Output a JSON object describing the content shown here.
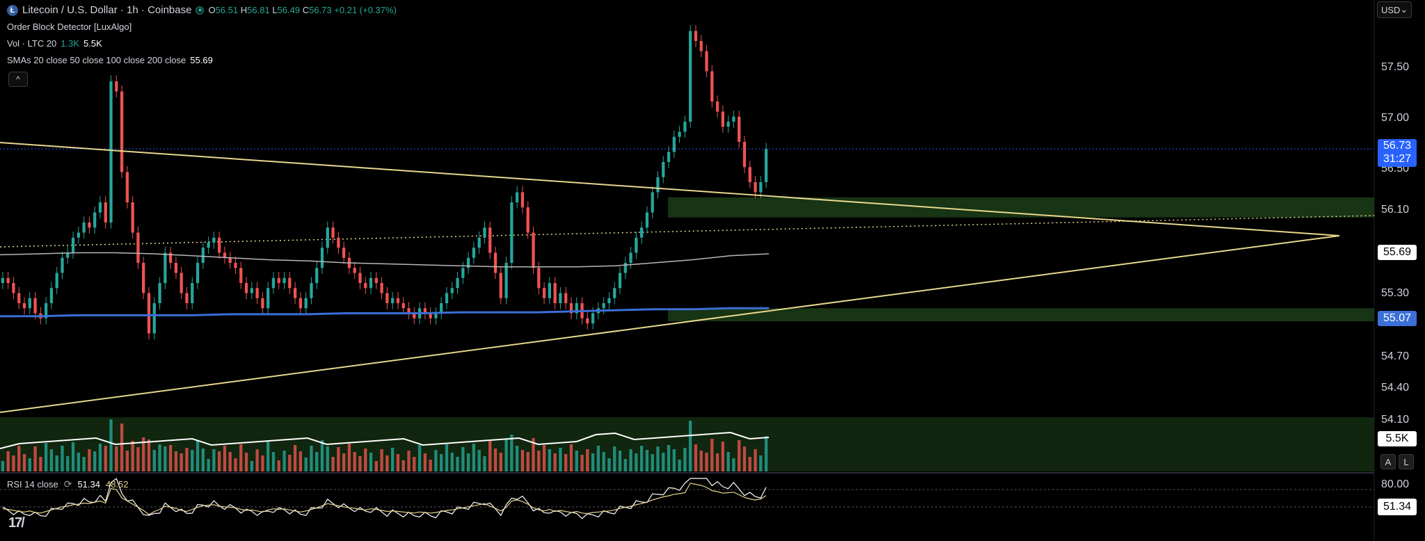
{
  "header": {
    "symbol_icon": "Ł",
    "symbol": "Litecoin / U.S. Dollar · 1h · Coinbase",
    "open_label": "O",
    "open": "56.51",
    "high_label": "H",
    "high": "56.81",
    "low_label": "L",
    "low": "56.49",
    "close_label": "C",
    "close": "56.73",
    "change": "+0.21 (+0.37%)"
  },
  "indicators": {
    "order_block": "Order Block Detector [LuxAlgo]",
    "vol_label": "Vol · LTC 20",
    "vol_value1": "1.3K",
    "vol_value2": "5.5K",
    "sma_label": "SMAs 20 close 50 close 100 close 200 close",
    "sma_value": "55.69"
  },
  "collapse_button": "^",
  "currency": "USD",
  "currency_caret": "⌄",
  "price_axis": [
    "57.50",
    "57.00",
    "56.50",
    "56.10",
    "55.30",
    "54.70",
    "54.40",
    "54.10"
  ],
  "price_tags": {
    "last_price": "56.73",
    "countdown": "31:27",
    "sma": "55.69",
    "blue_sma": "55.07",
    "volume": "5.5K"
  },
  "buttons": {
    "auto": "A",
    "log": "L"
  },
  "rsi": {
    "label": "RSI 14 close",
    "value": "51.34",
    "signal": "48.52",
    "axis_top": "80.00",
    "tag": "51.34"
  },
  "logo": "17/",
  "colors": {
    "up": "#26a69a",
    "down": "#ef5350",
    "trendline": "#e8d78e",
    "blue_sma": "#3c6fd8",
    "price_line": "#2962ff",
    "order_block": "#1a3a16"
  },
  "chart_data": {
    "type": "candlestick",
    "pair": "LTC/USD",
    "timeframe": "1h",
    "y_range": [
      54.0,
      58.0
    ],
    "last_close": 56.73,
    "price_levels": [
      56.1,
      55.69,
      55.07
    ],
    "order_blocks": [
      [
        56.05,
        56.25
      ],
      [
        55.02,
        55.15
      ]
    ],
    "series": [
      {
        "name": "Price",
        "values": [
          55.45,
          55.4,
          55.3,
          55.2,
          55.15,
          55.25,
          55.1,
          55.05,
          55.2,
          55.35,
          55.5,
          55.65,
          55.7,
          55.85,
          55.9,
          56.0,
          55.95,
          56.1,
          56.2,
          56.0,
          57.4,
          57.3,
          56.5,
          56.2,
          55.9,
          55.6,
          55.3,
          54.9,
          55.2,
          55.4,
          55.7,
          55.6,
          55.5,
          55.3,
          55.2,
          55.4,
          55.6,
          55.75,
          55.8,
          55.85,
          55.7,
          55.65,
          55.6,
          55.55,
          55.4,
          55.3,
          55.35,
          55.25,
          55.15,
          55.35,
          55.45,
          55.4,
          55.45,
          55.35,
          55.25,
          55.15,
          55.25,
          55.4,
          55.55,
          55.75,
          55.95,
          55.85,
          55.75,
          55.65,
          55.55,
          55.5,
          55.4,
          55.35,
          55.45,
          55.4,
          55.3,
          55.2,
          55.25,
          55.2,
          55.15,
          55.1,
          55.05,
          55.15,
          55.1,
          55.05,
          55.1,
          55.2,
          55.3,
          55.35,
          55.45,
          55.55,
          55.65,
          55.75,
          55.85,
          55.95,
          55.7,
          55.5,
          55.25,
          55.6,
          56.2,
          56.3,
          56.15,
          55.9,
          55.55,
          55.35,
          55.25,
          55.4,
          55.2,
          55.3,
          55.2,
          55.1,
          55.2,
          55.05,
          55.0,
          55.1,
          55.15,
          55.2,
          55.25,
          55.35,
          55.5,
          55.6,
          55.7,
          55.85,
          55.95,
          56.1,
          56.3,
          56.45,
          56.6,
          56.7,
          56.85,
          56.9,
          57.0,
          57.9,
          57.8,
          57.7,
          57.5,
          57.2,
          57.1,
          56.95,
          57.0,
          57.05,
          56.8,
          56.55,
          56.4,
          56.3,
          56.4,
          56.73
        ]
      },
      {
        "name": "SMA 100",
        "values": [
          55.68,
          55.69,
          55.7,
          55.7,
          55.69,
          55.67,
          55.65,
          55.63,
          55.62,
          55.6,
          55.59,
          55.58,
          55.57,
          55.56,
          55.56,
          55.56,
          55.57,
          55.6,
          55.63,
          55.67,
          55.69
        ]
      },
      {
        "name": "SMA 200",
        "values": [
          55.07,
          55.07,
          55.08,
          55.08,
          55.08,
          55.08,
          55.09,
          55.09,
          55.09,
          55.1,
          55.1,
          55.1,
          55.11,
          55.11,
          55.11,
          55.12,
          55.13,
          55.14,
          55.14,
          55.15,
          55.15
        ]
      }
    ]
  }
}
